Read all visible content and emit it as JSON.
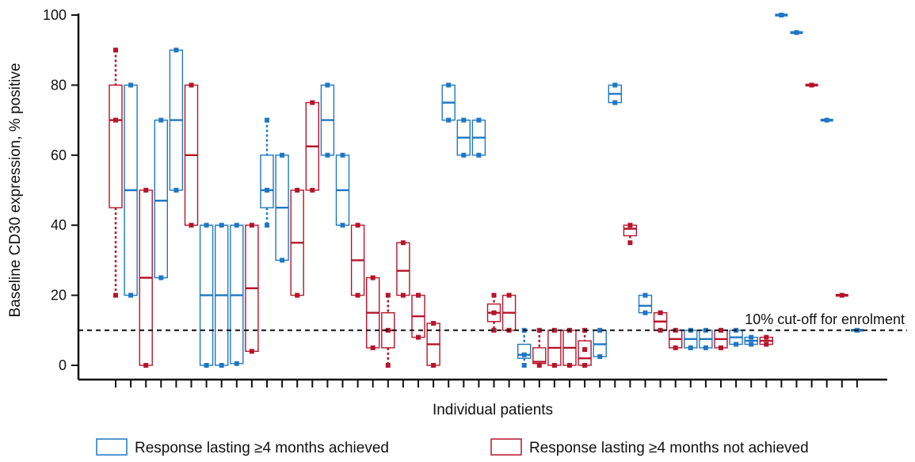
{
  "chart_data": {
    "type": "box",
    "title": "",
    "ylabel": "Baseline CD30 expression, % positive",
    "xlabel": "Individual patients",
    "ylim": [
      0,
      100
    ],
    "yticks": [
      0,
      20,
      40,
      60,
      80,
      100
    ],
    "grid": false,
    "legend_position": "bottom",
    "colors": {
      "achieved": "#1f77c4",
      "not_achieved": "#b5152b"
    },
    "reference_line": {
      "y": 10,
      "label": "10% cut-off for enrolment"
    },
    "series": [
      {
        "name": "Response lasting ≥4 months achieved",
        "key": "achieved"
      },
      {
        "name": "Response lasting ≥4 months not achieved",
        "key": "not_achieved"
      }
    ],
    "patients": [
      {
        "group": "not_achieved",
        "min": 20,
        "q1": 45,
        "median": 70,
        "q3": 80,
        "max": 90,
        "points": [
          20,
          70,
          90
        ]
      },
      {
        "group": "achieved",
        "min": 20,
        "q1": 20,
        "median": 50,
        "q3": 80,
        "max": 80,
        "points": [
          20,
          80
        ]
      },
      {
        "group": "not_achieved",
        "min": 0,
        "q1": 0,
        "median": 25,
        "q3": 50,
        "max": 50,
        "points": [
          0,
          50
        ]
      },
      {
        "group": "achieved",
        "min": 25,
        "q1": 25,
        "median": 47,
        "q3": 70,
        "max": 70,
        "points": [
          25,
          70
        ]
      },
      {
        "group": "achieved",
        "min": 50,
        "q1": 50,
        "median": 70,
        "q3": 90,
        "max": 90,
        "points": [
          50,
          90
        ]
      },
      {
        "group": "not_achieved",
        "min": 40,
        "q1": 40,
        "median": 60,
        "q3": 80,
        "max": 80,
        "points": [
          40,
          80
        ]
      },
      {
        "group": "achieved",
        "min": 0,
        "q1": 0,
        "median": 20,
        "q3": 40,
        "max": 40,
        "points": [
          0,
          40
        ]
      },
      {
        "group": "achieved",
        "min": 0,
        "q1": 0,
        "median": 20,
        "q3": 40,
        "max": 40,
        "points": [
          0,
          40
        ]
      },
      {
        "group": "achieved",
        "min": 0.5,
        "q1": 0.5,
        "median": 20,
        "q3": 40,
        "max": 40,
        "points": [
          0.5,
          40
        ]
      },
      {
        "group": "not_achieved",
        "min": 4,
        "q1": 4,
        "median": 22,
        "q3": 40,
        "max": 40,
        "points": [
          4,
          40
        ]
      },
      {
        "group": "achieved",
        "min": 40,
        "q1": 45,
        "median": 50,
        "q3": 60,
        "max": 70,
        "points": [
          40,
          50,
          70
        ]
      },
      {
        "group": "achieved",
        "min": 30,
        "q1": 30,
        "median": 45,
        "q3": 60,
        "max": 60,
        "points": [
          30,
          60
        ]
      },
      {
        "group": "not_achieved",
        "min": 20,
        "q1": 20,
        "median": 35,
        "q3": 50,
        "max": 50,
        "points": [
          20,
          50
        ]
      },
      {
        "group": "not_achieved",
        "min": 50,
        "q1": 50,
        "median": 62.5,
        "q3": 75,
        "max": 75,
        "points": [
          50,
          75
        ]
      },
      {
        "group": "achieved",
        "min": 60,
        "q1": 60,
        "median": 70,
        "q3": 80,
        "max": 80,
        "points": [
          60,
          80
        ]
      },
      {
        "group": "achieved",
        "min": 40,
        "q1": 40,
        "median": 50,
        "q3": 60,
        "max": 60,
        "points": [
          40,
          60
        ]
      },
      {
        "group": "not_achieved",
        "min": 20,
        "q1": 20,
        "median": 30,
        "q3": 40,
        "max": 40,
        "points": [
          20,
          40
        ]
      },
      {
        "group": "not_achieved",
        "min": 5,
        "q1": 5,
        "median": 15,
        "q3": 25,
        "max": 25,
        "points": [
          5,
          25
        ]
      },
      {
        "group": "not_achieved",
        "min": 0,
        "q1": 5,
        "median": 10,
        "q3": 15,
        "max": 20,
        "points": [
          0,
          10,
          20
        ]
      },
      {
        "group": "not_achieved",
        "min": 20,
        "q1": 20,
        "median": 27,
        "q3": 35,
        "max": 35,
        "points": [
          20,
          35
        ]
      },
      {
        "group": "not_achieved",
        "min": 8,
        "q1": 8,
        "median": 14,
        "q3": 20,
        "max": 20,
        "points": [
          8,
          20
        ]
      },
      {
        "group": "not_achieved",
        "min": 0,
        "q1": 0,
        "median": 6,
        "q3": 12,
        "max": 12,
        "points": [
          0,
          12
        ]
      },
      {
        "group": "achieved",
        "min": 70,
        "q1": 70,
        "median": 75,
        "q3": 80,
        "max": 80,
        "points": [
          70,
          80
        ]
      },
      {
        "group": "achieved",
        "min": 60,
        "q1": 60,
        "median": 65,
        "q3": 70,
        "max": 70,
        "points": [
          60,
          70
        ]
      },
      {
        "group": "achieved",
        "min": 60,
        "q1": 60,
        "median": 65,
        "q3": 70,
        "max": 70,
        "points": [
          60,
          70
        ]
      },
      {
        "group": "not_achieved",
        "min": 10,
        "q1": 12.5,
        "median": 15,
        "q3": 17.5,
        "max": 20,
        "points": [
          10,
          15,
          20
        ]
      },
      {
        "group": "not_achieved",
        "min": 10,
        "q1": 10,
        "median": 15,
        "q3": 20,
        "max": 20,
        "points": [
          10,
          20
        ]
      },
      {
        "group": "achieved",
        "min": 0,
        "q1": 2,
        "median": 3,
        "q3": 6,
        "max": 10,
        "points": [
          0,
          3,
          10
        ]
      },
      {
        "group": "not_achieved",
        "min": 0,
        "q1": 0.5,
        "median": 1,
        "q3": 5,
        "max": 10,
        "points": [
          0,
          10
        ]
      },
      {
        "group": "not_achieved",
        "min": 0,
        "q1": 0,
        "median": 5,
        "q3": 10,
        "max": 10,
        "points": [
          0,
          10
        ]
      },
      {
        "group": "not_achieved",
        "min": 0,
        "q1": 0,
        "median": 5,
        "q3": 10,
        "max": 10,
        "points": [
          0,
          10
        ]
      },
      {
        "group": "not_achieved",
        "min": 0,
        "q1": 0,
        "median": 2,
        "q3": 7,
        "max": 10,
        "points": [
          0,
          4.5,
          10
        ]
      },
      {
        "group": "achieved",
        "min": 2.5,
        "q1": 2.5,
        "median": 6,
        "q3": 10,
        "max": 10,
        "points": [
          2.5,
          10
        ]
      },
      {
        "group": "achieved",
        "min": 75,
        "q1": 75,
        "median": 77.5,
        "q3": 80,
        "max": 80,
        "points": [
          75,
          80
        ]
      },
      {
        "group": "not_achieved",
        "min": 35,
        "q1": 37,
        "median": 39,
        "q3": 40,
        "max": 40,
        "points": [
          35,
          40
        ]
      },
      {
        "group": "achieved",
        "min": 15,
        "q1": 15,
        "median": 17,
        "q3": 20,
        "max": 20,
        "points": [
          15,
          20
        ]
      },
      {
        "group": "not_achieved",
        "min": 10,
        "q1": 10,
        "median": 12.5,
        "q3": 15,
        "max": 15,
        "points": [
          10,
          15
        ]
      },
      {
        "group": "not_achieved",
        "min": 5,
        "q1": 5,
        "median": 7.5,
        "q3": 10,
        "max": 10,
        "points": [
          5,
          10
        ]
      },
      {
        "group": "achieved",
        "min": 5,
        "q1": 5,
        "median": 7.5,
        "q3": 10,
        "max": 10,
        "points": [
          5,
          10
        ]
      },
      {
        "group": "achieved",
        "min": 5,
        "q1": 5,
        "median": 7.5,
        "q3": 10,
        "max": 10,
        "points": [
          5,
          10
        ]
      },
      {
        "group": "not_achieved",
        "min": 5,
        "q1": 5,
        "median": 7.5,
        "q3": 10,
        "max": 10,
        "points": [
          5,
          10
        ]
      },
      {
        "group": "achieved",
        "min": 6,
        "q1": 6,
        "median": 8,
        "q3": 10,
        "max": 10,
        "points": [
          6,
          10
        ]
      },
      {
        "group": "achieved",
        "min": 6,
        "q1": 6,
        "median": 7,
        "q3": 8,
        "max": 8,
        "points": [
          6,
          8
        ]
      },
      {
        "group": "not_achieved",
        "min": 6,
        "q1": 6,
        "median": 7,
        "q3": 8,
        "max": 8,
        "points": [
          6,
          8
        ]
      },
      {
        "group": "achieved",
        "min": 100,
        "q1": 100,
        "median": 100,
        "q3": 100,
        "max": 100,
        "points": [
          100
        ]
      },
      {
        "group": "achieved",
        "min": 95,
        "q1": 95,
        "median": 95,
        "q3": 95,
        "max": 95,
        "points": [
          95
        ]
      },
      {
        "group": "not_achieved",
        "min": 80,
        "q1": 80,
        "median": 80,
        "q3": 80,
        "max": 80,
        "points": [
          80
        ]
      },
      {
        "group": "achieved",
        "min": 70,
        "q1": 70,
        "median": 70,
        "q3": 70,
        "max": 70,
        "points": [
          70
        ]
      },
      {
        "group": "not_achieved",
        "min": 20,
        "q1": 20,
        "median": 20,
        "q3": 20,
        "max": 20,
        "points": [
          20
        ]
      },
      {
        "group": "achieved",
        "min": 10,
        "q1": 10,
        "median": 10,
        "q3": 10,
        "max": 10,
        "points": [
          10
        ]
      }
    ]
  }
}
